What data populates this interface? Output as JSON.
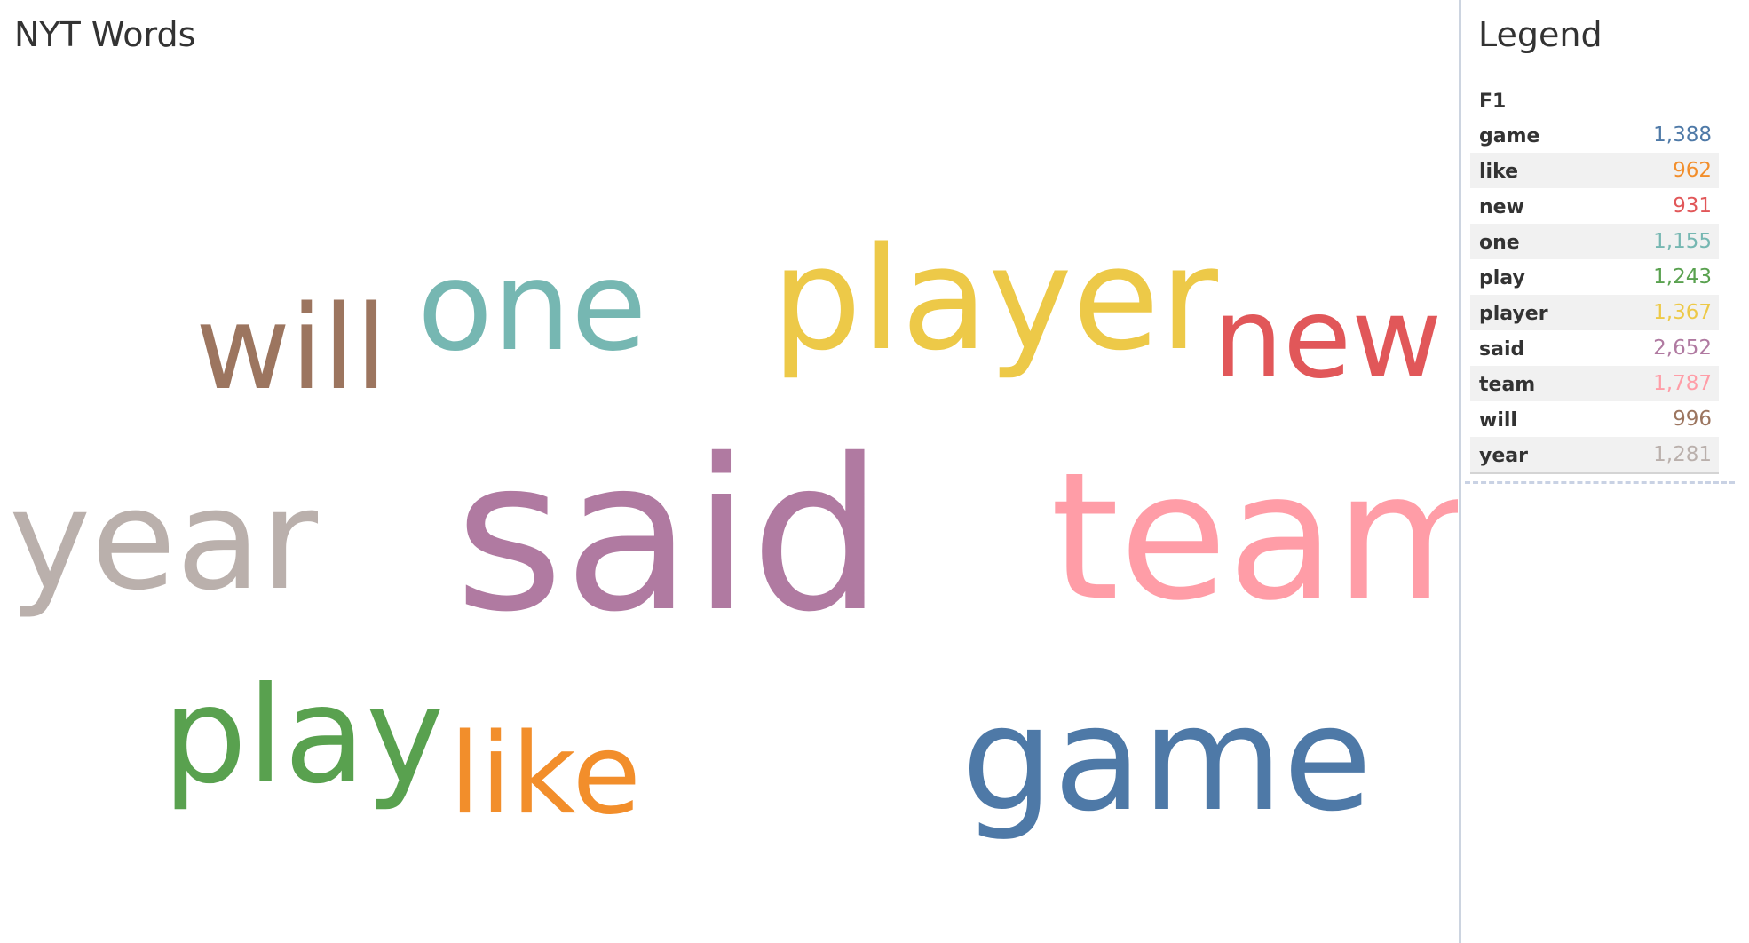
{
  "sheet": {
    "title": "NYT Words"
  },
  "legend": {
    "title": "Legend",
    "field_header": "F1"
  },
  "chart_data": {
    "type": "word-cloud",
    "title": "NYT Words",
    "legend_placement": "right",
    "words": [
      {
        "word": "game",
        "count": 1388,
        "color": "#4e79a7"
      },
      {
        "word": "like",
        "count": 962,
        "color": "#f28e2b"
      },
      {
        "word": "new",
        "count": 931,
        "color": "#e15759"
      },
      {
        "word": "one",
        "count": 1155,
        "color": "#76b7b2"
      },
      {
        "word": "play",
        "count": 1243,
        "color": "#59a14f"
      },
      {
        "word": "player",
        "count": 1367,
        "color": "#edc948"
      },
      {
        "word": "said",
        "count": 2652,
        "color": "#b07aa1"
      },
      {
        "word": "team",
        "count": 1787,
        "color": "#ff9da7"
      },
      {
        "word": "will",
        "count": 996,
        "color": "#9c755f"
      },
      {
        "word": "year",
        "count": 1281,
        "color": "#bab0ac"
      }
    ],
    "count_labels": [
      "1,388",
      "962",
      "931",
      "1,155",
      "1,243",
      "1,367",
      "2,652",
      "1,787",
      "996",
      "1,281"
    ]
  }
}
